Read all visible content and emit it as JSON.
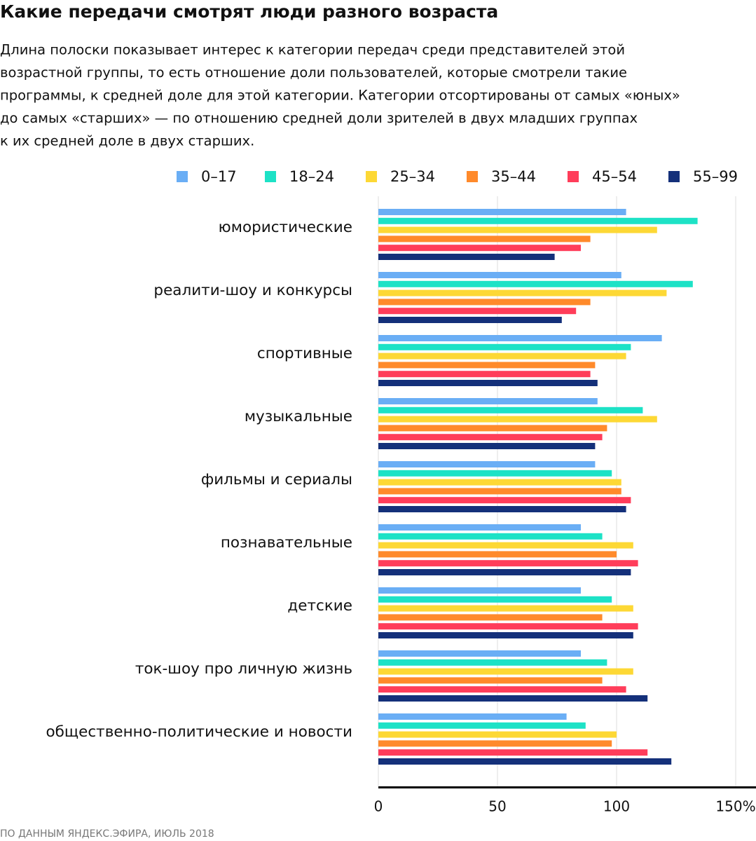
{
  "chart_data": {
    "type": "bar",
    "orientation": "horizontal",
    "title": "Какие передачи смотрят люди разного возраста",
    "subtitle": [
      "Длина полоски показывает интерес к категории передач среди представителей этой",
      "возрастной группы, то есть отношение доли пользователей, которые смотрели такие",
      "программы, к средней доле для этой категории. Категории отсортированы от самых «юных»",
      "до самых «старших» — по отношению  средней доли зрителей в двух младших группах",
      "к их средней доле в двух старших."
    ],
    "categories": [
      "юмористические",
      "реалити-шоу и конкурсы",
      "спортивные",
      "музыкальные",
      "фильмы и сериалы",
      "познавательные",
      "детские",
      "ток-шоу про личную жизнь",
      "общественно-политические и новости"
    ],
    "series": [
      {
        "name": "0–17",
        "color": "#6aaef5",
        "values": [
          104,
          102,
          119,
          92,
          91,
          85,
          85,
          85,
          79
        ]
      },
      {
        "name": "18–24",
        "color": "#1de2c6",
        "values": [
          134,
          132,
          106,
          111,
          98,
          94,
          98,
          96,
          87
        ]
      },
      {
        "name": "25–34",
        "color": "#fdd835",
        "values": [
          117,
          121,
          104,
          117,
          102,
          107,
          107,
          107,
          100
        ]
      },
      {
        "name": "35–44",
        "color": "#ff8a2b",
        "values": [
          89,
          89,
          91,
          96,
          102,
          100,
          94,
          94,
          98
        ]
      },
      {
        "name": "45–54",
        "color": "#ff3d5a",
        "values": [
          85,
          83,
          89,
          94,
          106,
          109,
          109,
          104,
          113
        ]
      },
      {
        "name": "55–99",
        "color": "#14307a",
        "values": [
          74,
          77,
          92,
          91,
          104,
          106,
          107,
          113,
          123
        ]
      }
    ],
    "xlim": [
      0,
      150
    ],
    "xticks": [
      0,
      50,
      100,
      {
        "value": 150,
        "label": "150%"
      }
    ],
    "grid": true,
    "source": "ПО ДАННЫМ ЯНДЕКС.ЭФИРА, ИЮЛЬ 2018"
  }
}
